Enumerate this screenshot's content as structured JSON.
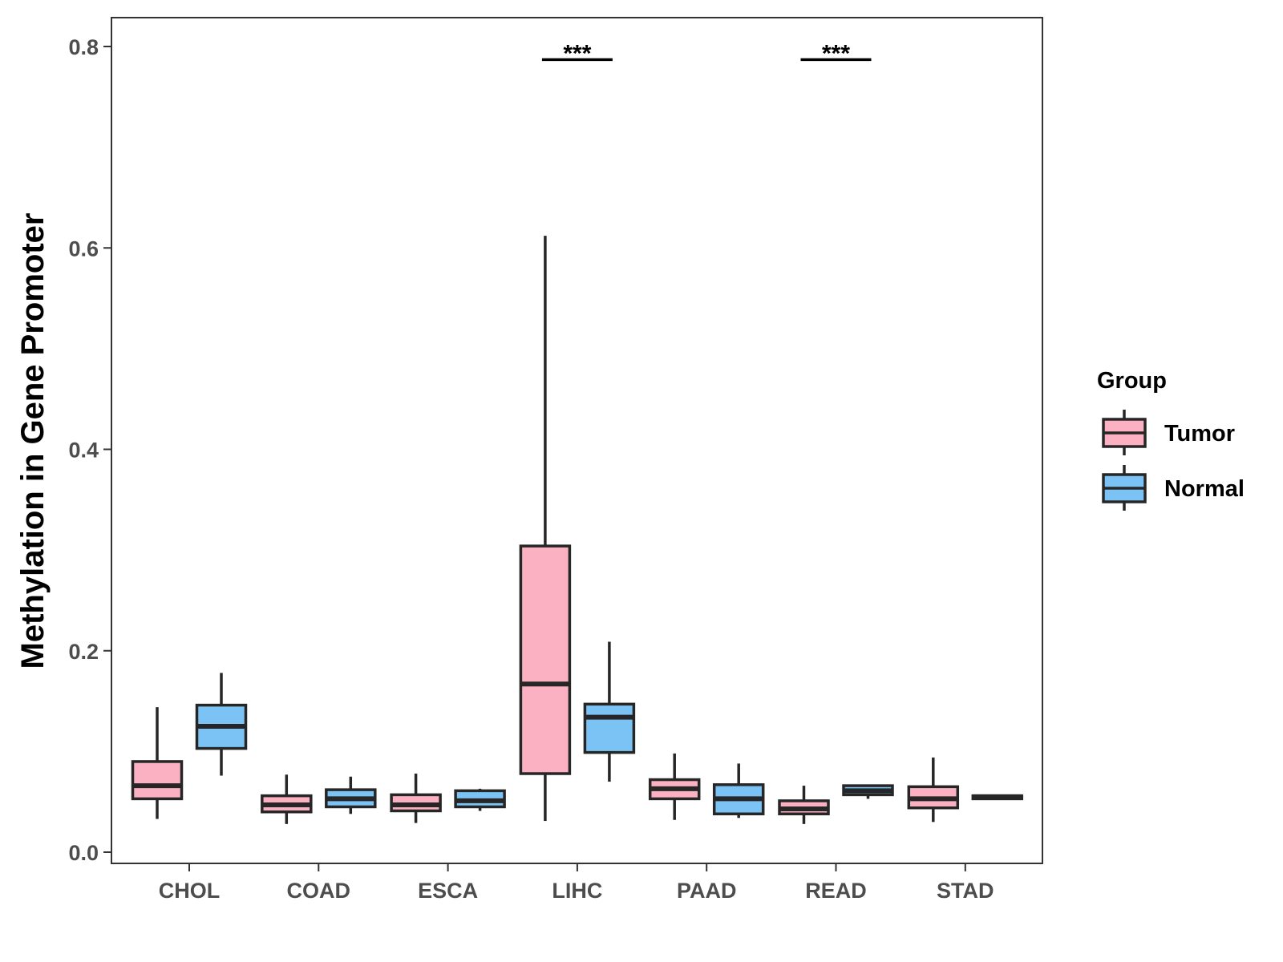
{
  "chart_data": {
    "type": "boxplot",
    "title": "",
    "xlabel": "",
    "ylabel": "Methylation in Gene Promoter",
    "ylim": [
      -0.01,
      0.83
    ],
    "yticks": [
      0.0,
      0.2,
      0.4,
      0.6,
      0.8
    ],
    "ytick_labels": [
      "0.0",
      "0.2",
      "0.4",
      "0.6",
      "0.8"
    ],
    "categories": [
      "CHOL",
      "COAD",
      "ESCA",
      "LIHC",
      "PAAD",
      "READ",
      "STAD"
    ],
    "legend": {
      "title": "Group",
      "position": "right",
      "entries": [
        {
          "name": "Tumor",
          "color": "#FBB1C2"
        },
        {
          "name": "Normal",
          "color": "#7CC3F5"
        }
      ]
    },
    "series": [
      {
        "name": "Tumor",
        "color": "#FBB1C2",
        "boxes": [
          {
            "category": "CHOL",
            "whisker_low": 0.033,
            "q1": 0.053,
            "median": 0.066,
            "q3": 0.09,
            "whisker_high": 0.144
          },
          {
            "category": "COAD",
            "whisker_low": 0.028,
            "q1": 0.04,
            "median": 0.047,
            "q3": 0.056,
            "whisker_high": 0.077
          },
          {
            "category": "ESCA",
            "whisker_low": 0.029,
            "q1": 0.041,
            "median": 0.047,
            "q3": 0.057,
            "whisker_high": 0.078
          },
          {
            "category": "LIHC",
            "whisker_low": 0.031,
            "q1": 0.078,
            "median": 0.167,
            "q3": 0.304,
            "whisker_high": 0.612
          },
          {
            "category": "PAAD",
            "whisker_low": 0.032,
            "q1": 0.053,
            "median": 0.063,
            "q3": 0.072,
            "whisker_high": 0.098
          },
          {
            "category": "READ",
            "whisker_low": 0.028,
            "q1": 0.038,
            "median": 0.043,
            "q3": 0.051,
            "whisker_high": 0.066
          },
          {
            "category": "STAD",
            "whisker_low": 0.03,
            "q1": 0.044,
            "median": 0.053,
            "q3": 0.065,
            "whisker_high": 0.094
          }
        ]
      },
      {
        "name": "Normal",
        "color": "#7CC3F5",
        "boxes": [
          {
            "category": "CHOL",
            "whisker_low": 0.076,
            "q1": 0.103,
            "median": 0.125,
            "q3": 0.146,
            "whisker_high": 0.178
          },
          {
            "category": "COAD",
            "whisker_low": 0.038,
            "q1": 0.045,
            "median": 0.053,
            "q3": 0.062,
            "whisker_high": 0.075
          },
          {
            "category": "ESCA",
            "whisker_low": 0.041,
            "q1": 0.045,
            "median": 0.051,
            "q3": 0.061,
            "whisker_high": 0.063
          },
          {
            "category": "LIHC",
            "whisker_low": 0.07,
            "q1": 0.099,
            "median": 0.134,
            "q3": 0.147,
            "whisker_high": 0.209
          },
          {
            "category": "PAAD",
            "whisker_low": 0.034,
            "q1": 0.038,
            "median": 0.053,
            "q3": 0.067,
            "whisker_high": 0.088
          },
          {
            "category": "READ",
            "whisker_low": 0.053,
            "q1": 0.057,
            "median": 0.061,
            "q3": 0.066,
            "whisker_high": 0.067
          },
          {
            "category": "STAD",
            "whisker_low": 0.053,
            "q1": 0.053,
            "median": 0.055,
            "q3": 0.056,
            "whisker_high": 0.056
          }
        ]
      }
    ],
    "annotations": [
      {
        "category": "LIHC",
        "label": "***",
        "y": 0.787
      },
      {
        "category": "READ",
        "label": "***",
        "y": 0.787
      }
    ]
  }
}
